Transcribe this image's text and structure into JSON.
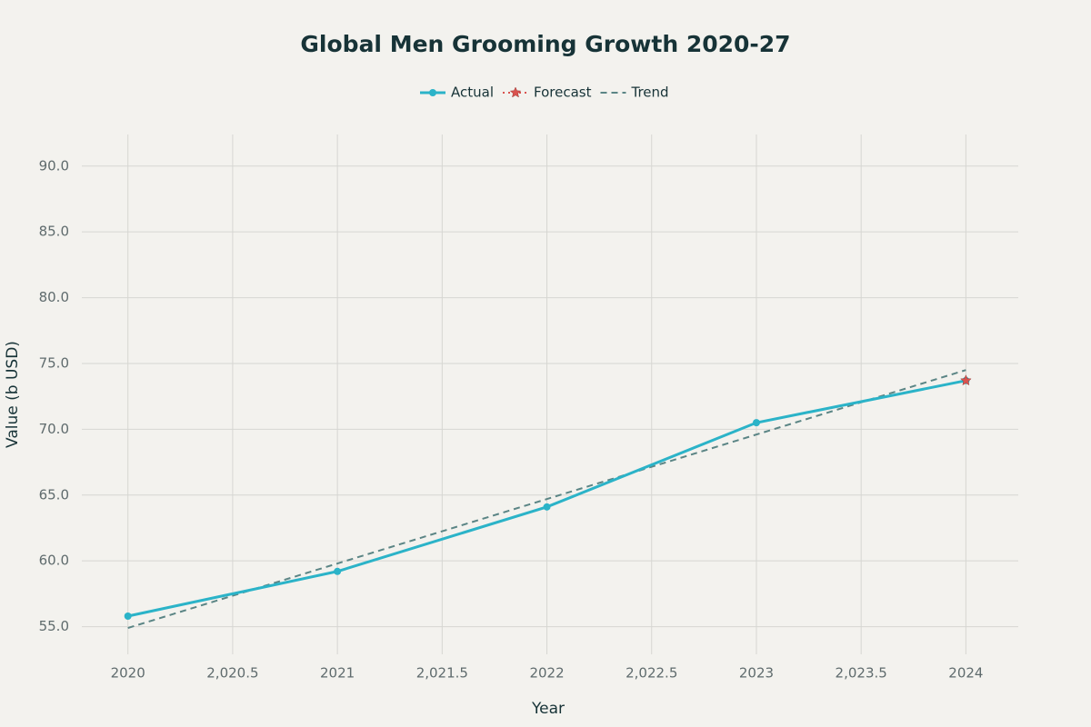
{
  "chart_data": {
    "type": "line",
    "title": "Global Men Grooming Growth 2020-27",
    "x_label": "Year",
    "y_label": "Value (b USD)",
    "series": [
      {
        "name": "Actual",
        "color": "#2bb3c8",
        "marker": "circle",
        "dash": "solid",
        "x": [
          2020,
          2021,
          2022,
          2023,
          2024
        ],
        "values": [
          55.8,
          59.2,
          64.1,
          70.5,
          73.7
        ]
      },
      {
        "name": "Forecast",
        "color": "#d9534f",
        "marker": "star",
        "dash": "dotted",
        "x": [
          2024
        ],
        "values": [
          73.7
        ]
      },
      {
        "name": "Trend",
        "color": "#5b8585",
        "marker": "none",
        "dash": "dashed",
        "x": [
          2020,
          2024
        ],
        "values": [
          54.9,
          74.5
        ]
      }
    ],
    "xlim": [
      2019.78,
      2024.25
    ],
    "ylim": [
      52.9,
      92.4
    ],
    "xticks": [
      2020,
      {
        "value": 2020.5,
        "label": "2,020.5"
      },
      2021,
      {
        "value": 2021.5,
        "label": "2,021.5"
      },
      2022,
      {
        "value": 2022.5,
        "label": "2,022.5"
      },
      2023,
      {
        "value": 2023.5,
        "label": "2,023.5"
      },
      2024
    ],
    "yticks": [
      {
        "value": 55,
        "label": "55.0"
      },
      {
        "value": 60,
        "label": "60.0"
      },
      {
        "value": 65,
        "label": "65.0"
      },
      {
        "value": 70,
        "label": "70.0"
      },
      {
        "value": 75,
        "label": "75.0"
      },
      {
        "value": 80,
        "label": "80.0"
      },
      {
        "value": 85,
        "label": "85.0"
      },
      {
        "value": 90,
        "label": "90.0"
      }
    ],
    "grid": true,
    "legend": "top"
  }
}
